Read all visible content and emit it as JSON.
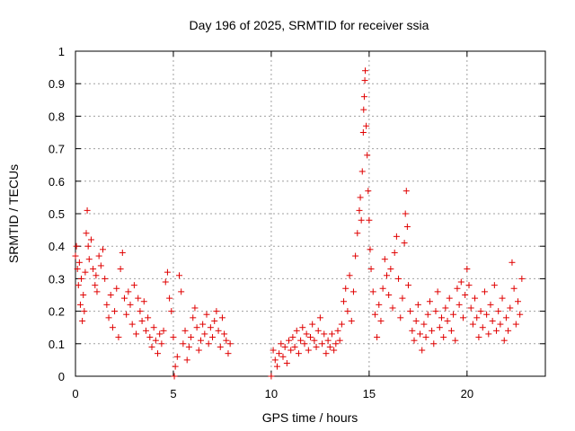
{
  "chart_data": {
    "type": "scatter",
    "title": "Day 196 of 2025, SRMTID for receiver ssia",
    "xlabel": "GPS time / hours",
    "ylabel": "SRMTID / TECUs",
    "xlim": [
      0,
      24
    ],
    "ylim": [
      0,
      1
    ],
    "xticks": [
      0,
      5,
      10,
      15,
      20
    ],
    "xtick_labels": [
      "0",
      "5",
      "10",
      "15",
      "20"
    ],
    "yticks": [
      0,
      0.1,
      0.2,
      0.3,
      0.4,
      0.5,
      0.6,
      0.7,
      0.8,
      0.9,
      1
    ],
    "ytick_labels": [
      "0",
      "0.1",
      "0.2",
      "0.3",
      "0.4",
      "0.5",
      "0.6",
      "0.7",
      "0.8",
      "0.9",
      "1"
    ],
    "grid": true,
    "marker": "+",
    "marker_color": "#e00000",
    "series": [
      {
        "name": "SRMTID",
        "points": [
          [
            0.0,
            0.37
          ],
          [
            0.05,
            0.4
          ],
          [
            0.1,
            0.33
          ],
          [
            0.15,
            0.28
          ],
          [
            0.2,
            0.35
          ],
          [
            0.25,
            0.22
          ],
          [
            0.3,
            0.3
          ],
          [
            0.35,
            0.17
          ],
          [
            0.4,
            0.25
          ],
          [
            0.45,
            0.2
          ],
          [
            0.5,
            0.32
          ],
          [
            0.55,
            0.44
          ],
          [
            0.6,
            0.51
          ],
          [
            0.65,
            0.4
          ],
          [
            0.7,
            0.36
          ],
          [
            0.8,
            0.42
          ],
          [
            0.9,
            0.33
          ],
          [
            1.0,
            0.28
          ],
          [
            1.05,
            0.31
          ],
          [
            1.1,
            0.26
          ],
          [
            1.2,
            0.37
          ],
          [
            1.3,
            0.34
          ],
          [
            1.4,
            0.39
          ],
          [
            1.5,
            0.3
          ],
          [
            1.6,
            0.22
          ],
          [
            1.7,
            0.18
          ],
          [
            1.8,
            0.25
          ],
          [
            1.9,
            0.15
          ],
          [
            2.0,
            0.2
          ],
          [
            2.1,
            0.27
          ],
          [
            2.2,
            0.12
          ],
          [
            2.3,
            0.33
          ],
          [
            2.4,
            0.38
          ],
          [
            2.5,
            0.24
          ],
          [
            2.6,
            0.19
          ],
          [
            2.7,
            0.26
          ],
          [
            2.8,
            0.22
          ],
          [
            2.9,
            0.16
          ],
          [
            3.0,
            0.28
          ],
          [
            3.1,
            0.13
          ],
          [
            3.2,
            0.24
          ],
          [
            3.3,
            0.2
          ],
          [
            3.4,
            0.17
          ],
          [
            3.5,
            0.23
          ],
          [
            3.6,
            0.14
          ],
          [
            3.7,
            0.18
          ],
          [
            3.8,
            0.12
          ],
          [
            3.9,
            0.09
          ],
          [
            4.0,
            0.15
          ],
          [
            4.1,
            0.11
          ],
          [
            4.2,
            0.07
          ],
          [
            4.3,
            0.13
          ],
          [
            4.4,
            0.1
          ],
          [
            4.5,
            0.14
          ],
          [
            4.6,
            0.29
          ],
          [
            4.7,
            0.32
          ],
          [
            4.8,
            0.24
          ],
          [
            4.9,
            0.2
          ],
          [
            5.0,
            0.12
          ],
          [
            5.05,
            0.0
          ],
          [
            5.1,
            0.03
          ],
          [
            5.2,
            0.06
          ],
          [
            5.3,
            0.31
          ],
          [
            5.4,
            0.26
          ],
          [
            5.5,
            0.1
          ],
          [
            5.6,
            0.14
          ],
          [
            5.7,
            0.05
          ],
          [
            5.8,
            0.09
          ],
          [
            5.9,
            0.12
          ],
          [
            6.0,
            0.18
          ],
          [
            6.1,
            0.21
          ],
          [
            6.2,
            0.15
          ],
          [
            6.3,
            0.08
          ],
          [
            6.4,
            0.11
          ],
          [
            6.5,
            0.16
          ],
          [
            6.6,
            0.13
          ],
          [
            6.7,
            0.19
          ],
          [
            6.8,
            0.1
          ],
          [
            6.9,
            0.15
          ],
          [
            7.0,
            0.12
          ],
          [
            7.1,
            0.17
          ],
          [
            7.2,
            0.2
          ],
          [
            7.3,
            0.14
          ],
          [
            7.4,
            0.09
          ],
          [
            7.5,
            0.18
          ],
          [
            7.6,
            0.13
          ],
          [
            7.7,
            0.11
          ],
          [
            7.8,
            0.07
          ],
          [
            7.9,
            0.1
          ],
          [
            10.0,
            0.0
          ],
          [
            10.1,
            0.08
          ],
          [
            10.2,
            0.05
          ],
          [
            10.3,
            0.03
          ],
          [
            10.4,
            0.07
          ],
          [
            10.5,
            0.1
          ],
          [
            10.6,
            0.06
          ],
          [
            10.7,
            0.09
          ],
          [
            10.8,
            0.04
          ],
          [
            10.9,
            0.11
          ],
          [
            11.0,
            0.08
          ],
          [
            11.1,
            0.12
          ],
          [
            11.2,
            0.09
          ],
          [
            11.3,
            0.14
          ],
          [
            11.4,
            0.07
          ],
          [
            11.5,
            0.11
          ],
          [
            11.6,
            0.15
          ],
          [
            11.7,
            0.1
          ],
          [
            11.8,
            0.13
          ],
          [
            11.9,
            0.08
          ],
          [
            12.0,
            0.12
          ],
          [
            12.1,
            0.16
          ],
          [
            12.2,
            0.11
          ],
          [
            12.3,
            0.09
          ],
          [
            12.4,
            0.14
          ],
          [
            12.5,
            0.18
          ],
          [
            12.6,
            0.1
          ],
          [
            12.7,
            0.13
          ],
          [
            12.8,
            0.07
          ],
          [
            12.9,
            0.11
          ],
          [
            13.0,
            0.09
          ],
          [
            13.1,
            0.13
          ],
          [
            13.2,
            0.08
          ],
          [
            13.3,
            0.1
          ],
          [
            13.4,
            0.14
          ],
          [
            13.5,
            0.11
          ],
          [
            13.6,
            0.16
          ],
          [
            13.7,
            0.23
          ],
          [
            13.8,
            0.27
          ],
          [
            13.9,
            0.2
          ],
          [
            14.0,
            0.31
          ],
          [
            14.1,
            0.17
          ],
          [
            14.2,
            0.26
          ],
          [
            14.3,
            0.37
          ],
          [
            14.4,
            0.44
          ],
          [
            14.5,
            0.51
          ],
          [
            14.55,
            0.55
          ],
          [
            14.6,
            0.48
          ],
          [
            14.65,
            0.63
          ],
          [
            14.7,
            0.75
          ],
          [
            14.72,
            0.82
          ],
          [
            14.75,
            0.86
          ],
          [
            14.78,
            0.91
          ],
          [
            14.8,
            0.94
          ],
          [
            14.85,
            0.77
          ],
          [
            14.9,
            0.68
          ],
          [
            14.95,
            0.57
          ],
          [
            15.0,
            0.48
          ],
          [
            15.05,
            0.39
          ],
          [
            15.1,
            0.33
          ],
          [
            15.2,
            0.26
          ],
          [
            15.3,
            0.19
          ],
          [
            15.4,
            0.12
          ],
          [
            15.5,
            0.22
          ],
          [
            15.6,
            0.17
          ],
          [
            15.7,
            0.27
          ],
          [
            15.8,
            0.36
          ],
          [
            15.9,
            0.31
          ],
          [
            16.0,
            0.25
          ],
          [
            16.1,
            0.33
          ],
          [
            16.2,
            0.21
          ],
          [
            16.3,
            0.38
          ],
          [
            16.4,
            0.43
          ],
          [
            16.5,
            0.3
          ],
          [
            16.6,
            0.18
          ],
          [
            16.7,
            0.24
          ],
          [
            16.8,
            0.41
          ],
          [
            16.85,
            0.5
          ],
          [
            16.9,
            0.57
          ],
          [
            16.95,
            0.46
          ],
          [
            17.0,
            0.28
          ],
          [
            17.1,
            0.2
          ],
          [
            17.2,
            0.14
          ],
          [
            17.3,
            0.11
          ],
          [
            17.4,
            0.17
          ],
          [
            17.5,
            0.22
          ],
          [
            17.6,
            0.13
          ],
          [
            17.7,
            0.08
          ],
          [
            17.8,
            0.16
          ],
          [
            17.9,
            0.12
          ],
          [
            18.0,
            0.19
          ],
          [
            18.1,
            0.23
          ],
          [
            18.2,
            0.14
          ],
          [
            18.3,
            0.1
          ],
          [
            18.4,
            0.2
          ],
          [
            18.5,
            0.26
          ],
          [
            18.6,
            0.15
          ],
          [
            18.7,
            0.18
          ],
          [
            18.8,
            0.12
          ],
          [
            18.9,
            0.21
          ],
          [
            19.0,
            0.17
          ],
          [
            19.1,
            0.24
          ],
          [
            19.2,
            0.14
          ],
          [
            19.3,
            0.19
          ],
          [
            19.4,
            0.11
          ],
          [
            19.5,
            0.27
          ],
          [
            19.6,
            0.22
          ],
          [
            19.7,
            0.29
          ],
          [
            19.8,
            0.18
          ],
          [
            19.9,
            0.25
          ],
          [
            20.0,
            0.33
          ],
          [
            20.1,
            0.28
          ],
          [
            20.2,
            0.21
          ],
          [
            20.3,
            0.16
          ],
          [
            20.4,
            0.24
          ],
          [
            20.5,
            0.18
          ],
          [
            20.6,
            0.12
          ],
          [
            20.7,
            0.2
          ],
          [
            20.8,
            0.15
          ],
          [
            20.9,
            0.26
          ],
          [
            21.0,
            0.19
          ],
          [
            21.1,
            0.13
          ],
          [
            21.2,
            0.22
          ],
          [
            21.3,
            0.17
          ],
          [
            21.4,
            0.28
          ],
          [
            21.5,
            0.14
          ],
          [
            21.6,
            0.2
          ],
          [
            21.7,
            0.16
          ],
          [
            21.8,
            0.24
          ],
          [
            21.9,
            0.11
          ],
          [
            22.0,
            0.18
          ],
          [
            22.1,
            0.14
          ],
          [
            22.2,
            0.21
          ],
          [
            22.3,
            0.35
          ],
          [
            22.4,
            0.27
          ],
          [
            22.5,
            0.16
          ],
          [
            22.6,
            0.23
          ],
          [
            22.7,
            0.19
          ],
          [
            22.8,
            0.3
          ]
        ]
      }
    ]
  }
}
